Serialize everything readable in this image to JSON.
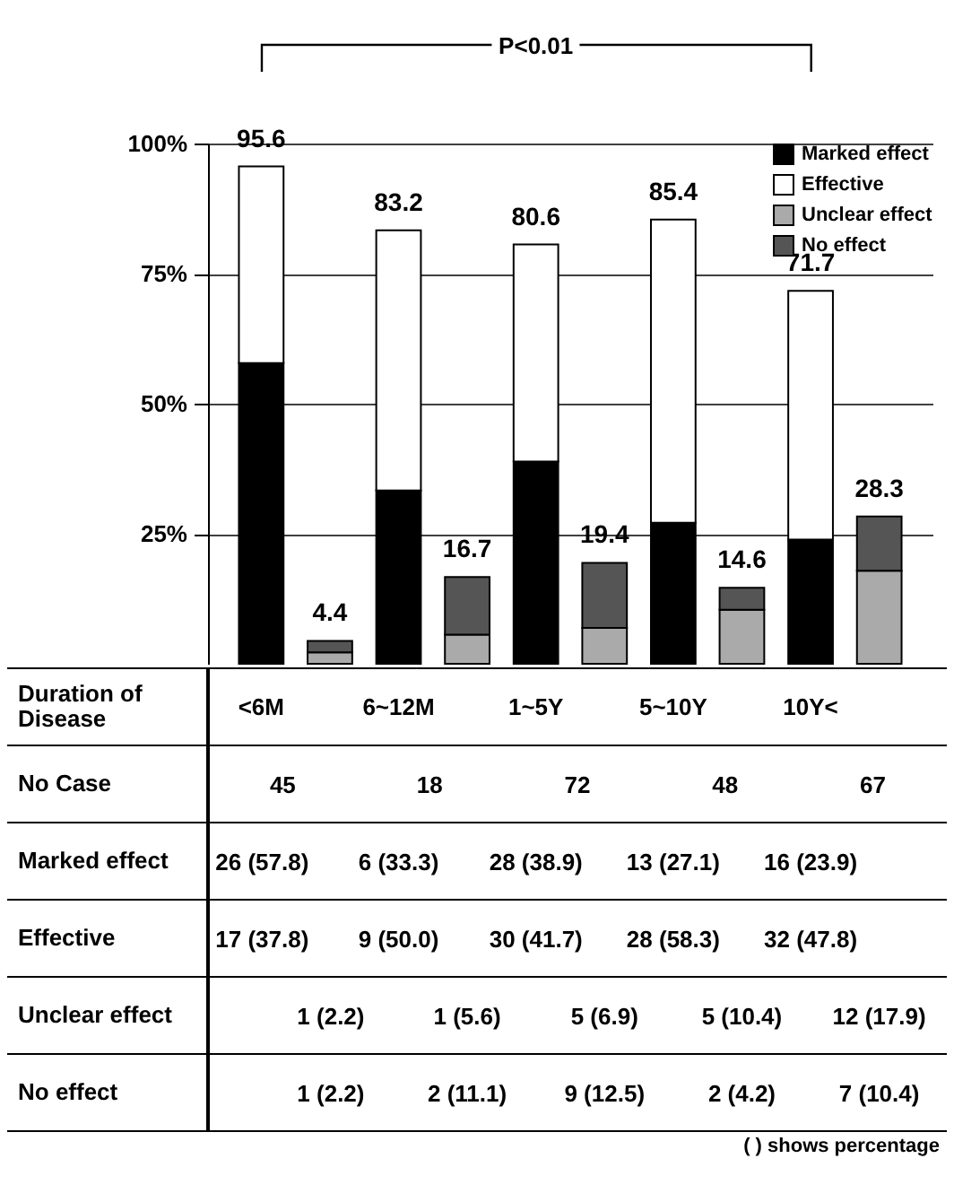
{
  "chart_data": {
    "type": "bar",
    "stacked": true,
    "xlabel": "Duration of Disease",
    "categories": [
      "<6M",
      null,
      "6~12M",
      null,
      "1~5Y",
      null,
      "5~10Y",
      null,
      "10Y<",
      null
    ],
    "series": [
      {
        "name": "Marked effect",
        "color": "#000000",
        "values": [
          57.8,
          null,
          33.3,
          null,
          38.9,
          null,
          27.1,
          null,
          23.9,
          null
        ],
        "value_labels": [
          "26 (57.8)",
          null,
          "6 (33.3)",
          null,
          "28 (38.9)",
          null,
          "13 (27.1)",
          null,
          "16 (23.9)",
          null
        ]
      },
      {
        "name": "Effective",
        "color": "#ffffff",
        "values": [
          37.8,
          null,
          50.0,
          null,
          41.7,
          null,
          58.3,
          null,
          47.8,
          null
        ],
        "value_labels": [
          "17 (37.8)",
          null,
          "9 (50.0)",
          null,
          "30 (41.7)",
          null,
          "28 (58.3)",
          null,
          "32 (47.8)",
          null
        ]
      },
      {
        "name": "Unclear effect",
        "color": "#aaaaaa",
        "values": [
          null,
          2.2,
          null,
          5.6,
          null,
          6.9,
          null,
          10.4,
          null,
          17.9
        ],
        "value_labels": [
          null,
          "1 (2.2)",
          null,
          "1 (5.6)",
          null,
          "5 (6.9)",
          null,
          "5 (10.4)",
          null,
          "12 (17.9)"
        ]
      },
      {
        "name": "No effect",
        "color": "#555555",
        "values": [
          null,
          2.2,
          null,
          11.1,
          null,
          12.5,
          null,
          4.2,
          null,
          10.4
        ],
        "value_labels": [
          null,
          "1 (2.2)",
          null,
          "2 (11.1)",
          null,
          "9 (12.5)",
          null,
          "2 (4.2)",
          null,
          "7 (10.4)"
        ]
      }
    ],
    "totals": [
      "95.6",
      "4.4",
      "83.2",
      "16.7",
      "80.6",
      "19.4",
      "85.4",
      "14.6",
      "71.7",
      "28.3"
    ],
    "ylim": [
      0,
      100
    ],
    "yticks": [
      {
        "value": 25,
        "label": "25%"
      },
      {
        "value": 50,
        "label": "50%"
      },
      {
        "value": 75,
        "label": "75%"
      },
      {
        "value": 100,
        "label": "100%"
      }
    ],
    "grid": "y",
    "legend": "top right",
    "annotations": [
      "P<0.01",
      "No Case",
      "45",
      "18",
      "72",
      "48",
      "67",
      "( ) shows percentage"
    ]
  }
}
